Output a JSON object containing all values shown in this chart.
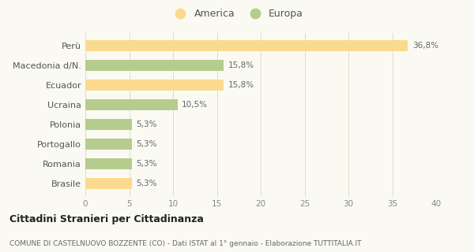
{
  "categories": [
    "Brasile",
    "Romania",
    "Portogallo",
    "Polonia",
    "Ucraina",
    "Ecuador",
    "Macedonia d/N.",
    "Perù"
  ],
  "values": [
    5.3,
    5.3,
    5.3,
    5.3,
    10.5,
    15.8,
    15.8,
    36.8
  ],
  "colors": [
    "#FADA8E",
    "#B5CC8E",
    "#B5CC8E",
    "#B5CC8E",
    "#B5CC8E",
    "#FADA8E",
    "#B5CC8E",
    "#FADA8E"
  ],
  "labels": [
    "5,3%",
    "5,3%",
    "5,3%",
    "5,3%",
    "10,5%",
    "15,8%",
    "15,8%",
    "36,8%"
  ],
  "legend_america_color": "#FADA8E",
  "legend_europa_color": "#B5CC8E",
  "xlim": [
    0,
    40
  ],
  "xticks": [
    0,
    5,
    10,
    15,
    20,
    25,
    30,
    35,
    40
  ],
  "title_main": "Cittadini Stranieri per Cittadinanza",
  "title_sub": "COMUNE DI CASTELNUOVO BOZZENTE (CO) - Dati ISTAT al 1° gennaio - Elaborazione TUTTITALIA.IT",
  "background_color": "#fafaf2",
  "grid_color": "#ddddcc",
  "bar_height": 0.55
}
